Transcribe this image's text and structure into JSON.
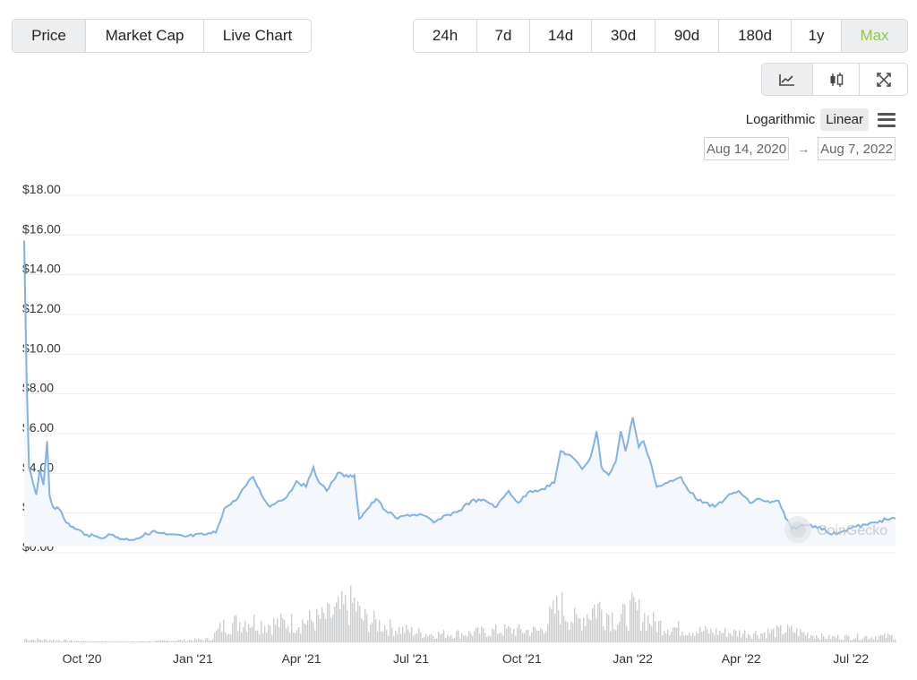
{
  "data_tabs": [
    {
      "label": "Price",
      "active": true
    },
    {
      "label": "Market Cap",
      "active": false
    },
    {
      "label": "Live Chart",
      "active": false
    }
  ],
  "range_tabs": [
    {
      "label": "24h",
      "active": false
    },
    {
      "label": "7d",
      "active": false
    },
    {
      "label": "14d",
      "active": false
    },
    {
      "label": "30d",
      "active": false
    },
    {
      "label": "90d",
      "active": false
    },
    {
      "label": "180d",
      "active": false
    },
    {
      "label": "1y",
      "active": false
    },
    {
      "label": "Max",
      "active": true
    }
  ],
  "chart_type_buttons": [
    {
      "icon": "line-chart-icon",
      "active": true
    },
    {
      "icon": "candlestick-icon",
      "active": false
    },
    {
      "icon": "fullscreen-icon",
      "active": false
    }
  ],
  "scale": {
    "logarithmic_label": "Logarithmic",
    "linear_label": "Linear",
    "selected": "Linear"
  },
  "date_range": {
    "from": "Aug 14, 2020",
    "to": "Aug 7, 2022"
  },
  "watermark": "CoinGecko",
  "colors": {
    "line": "#7fb2e8",
    "fill": "#f4f8fd",
    "volume": "#c9cdd2",
    "grid": "#eeeeee",
    "accent": "#8dc647"
  },
  "chart_data": {
    "type": "line",
    "x_start": "2020-08-14",
    "x_end": "2022-08-07",
    "ylim": [
      0,
      18
    ],
    "y_ticks": [
      0,
      2,
      4,
      6,
      8,
      10,
      12,
      14,
      16,
      18
    ],
    "y_tick_labels": [
      "$0.00",
      "$2.00",
      "$4.00",
      "$6.00",
      "$8.00",
      "$10.00",
      "$12.00",
      "$14.00",
      "$16.00",
      "$18.00"
    ],
    "x_ticks": [
      {
        "date": "2020-10-01",
        "label": "Oct '20"
      },
      {
        "date": "2021-01-01",
        "label": "Jan '21"
      },
      {
        "date": "2021-04-01",
        "label": "Apr '21"
      },
      {
        "date": "2021-07-01",
        "label": "Jul '21"
      },
      {
        "date": "2021-10-01",
        "label": "Oct '21"
      },
      {
        "date": "2022-01-01",
        "label": "Jan '22"
      },
      {
        "date": "2022-04-01",
        "label": "Apr '22"
      },
      {
        "date": "2022-07-01",
        "label": "Jul '22"
      }
    ],
    "grid": true,
    "series": [
      {
        "price": [
          [
            "2020-08-14",
            15.4
          ],
          [
            "2020-08-16",
            8.5
          ],
          [
            "2020-08-18",
            4.0
          ],
          [
            "2020-08-21",
            3.3
          ],
          [
            "2020-08-24",
            2.6
          ],
          [
            "2020-08-27",
            3.9
          ],
          [
            "2020-08-30",
            3.1
          ],
          [
            "2020-09-02",
            5.3
          ],
          [
            "2020-09-04",
            2.6
          ],
          [
            "2020-09-07",
            2.0
          ],
          [
            "2020-09-12",
            1.9
          ],
          [
            "2020-09-18",
            1.2
          ],
          [
            "2020-09-25",
            0.9
          ],
          [
            "2020-10-05",
            0.6
          ],
          [
            "2020-10-15",
            0.45
          ],
          [
            "2020-10-25",
            0.6
          ],
          [
            "2020-11-05",
            0.35
          ],
          [
            "2020-11-15",
            0.4
          ],
          [
            "2020-11-28",
            0.75
          ],
          [
            "2020-12-10",
            0.6
          ],
          [
            "2020-12-25",
            0.5
          ],
          [
            "2021-01-10",
            0.6
          ],
          [
            "2021-01-20",
            0.7
          ],
          [
            "2021-01-27",
            1.9
          ],
          [
            "2021-02-05",
            2.3
          ],
          [
            "2021-02-13",
            3.0
          ],
          [
            "2021-02-20",
            3.5
          ],
          [
            "2021-02-27",
            2.6
          ],
          [
            "2021-03-06",
            2.0
          ],
          [
            "2021-03-13",
            2.3
          ],
          [
            "2021-03-20",
            2.5
          ],
          [
            "2021-03-28",
            3.3
          ],
          [
            "2021-04-05",
            3.0
          ],
          [
            "2021-04-11",
            4.0
          ],
          [
            "2021-04-16",
            3.2
          ],
          [
            "2021-04-22",
            2.8
          ],
          [
            "2021-05-01",
            3.7
          ],
          [
            "2021-05-10",
            3.5
          ],
          [
            "2021-05-15",
            3.6
          ],
          [
            "2021-05-19",
            1.4
          ],
          [
            "2021-05-26",
            1.9
          ],
          [
            "2021-06-02",
            2.4
          ],
          [
            "2021-06-10",
            1.8
          ],
          [
            "2021-06-20",
            1.4
          ],
          [
            "2021-06-28",
            1.6
          ],
          [
            "2021-07-10",
            1.6
          ],
          [
            "2021-07-20",
            1.2
          ],
          [
            "2021-08-01",
            1.6
          ],
          [
            "2021-08-10",
            1.8
          ],
          [
            "2021-08-20",
            2.3
          ],
          [
            "2021-09-01",
            2.3
          ],
          [
            "2021-09-10",
            2.0
          ],
          [
            "2021-09-20",
            2.8
          ],
          [
            "2021-09-28",
            2.2
          ],
          [
            "2021-10-08",
            2.8
          ],
          [
            "2021-10-18",
            2.9
          ],
          [
            "2021-10-28",
            3.2
          ],
          [
            "2021-11-02",
            4.8
          ],
          [
            "2021-11-10",
            4.6
          ],
          [
            "2021-11-20",
            3.9
          ],
          [
            "2021-11-27",
            4.5
          ],
          [
            "2021-12-02",
            5.8
          ],
          [
            "2021-12-06",
            4.0
          ],
          [
            "2021-12-12",
            3.6
          ],
          [
            "2021-12-18",
            4.3
          ],
          [
            "2021-12-22",
            5.8
          ],
          [
            "2021-12-26",
            4.8
          ],
          [
            "2022-01-01",
            6.5
          ],
          [
            "2022-01-06",
            5.0
          ],
          [
            "2022-01-10",
            5.3
          ],
          [
            "2022-01-15",
            4.4
          ],
          [
            "2022-01-21",
            3.0
          ],
          [
            "2022-01-26",
            3.1
          ],
          [
            "2022-02-03",
            3.3
          ],
          [
            "2022-02-10",
            3.5
          ],
          [
            "2022-02-18",
            2.7
          ],
          [
            "2022-02-28",
            2.2
          ],
          [
            "2022-03-10",
            2.0
          ],
          [
            "2022-03-20",
            2.5
          ],
          [
            "2022-03-30",
            2.8
          ],
          [
            "2022-04-08",
            2.2
          ],
          [
            "2022-04-16",
            2.4
          ],
          [
            "2022-04-25",
            2.2
          ],
          [
            "2022-05-02",
            2.3
          ],
          [
            "2022-05-08",
            1.4
          ],
          [
            "2022-05-13",
            0.9
          ],
          [
            "2022-05-25",
            1.1
          ],
          [
            "2022-06-05",
            1.0
          ],
          [
            "2022-06-15",
            0.6
          ],
          [
            "2022-06-25",
            0.8
          ],
          [
            "2022-07-05",
            1.0
          ],
          [
            "2022-07-15",
            1.1
          ],
          [
            "2022-07-25",
            1.3
          ],
          [
            "2022-08-07",
            1.4
          ]
        ],
        "volume_pct": [
          [
            "2020-08-14",
            8
          ],
          [
            "2020-09-01",
            6
          ],
          [
            "2020-10-01",
            3
          ],
          [
            "2020-11-01",
            2
          ],
          [
            "2020-12-01",
            3
          ],
          [
            "2021-01-15",
            8
          ],
          [
            "2021-01-25",
            40
          ],
          [
            "2021-02-15",
            55
          ],
          [
            "2021-03-01",
            45
          ],
          [
            "2021-04-01",
            50
          ],
          [
            "2021-04-20",
            60
          ],
          [
            "2021-05-15",
            95
          ],
          [
            "2021-05-20",
            60
          ],
          [
            "2021-06-15",
            35
          ],
          [
            "2021-07-15",
            20
          ],
          [
            "2021-08-15",
            22
          ],
          [
            "2021-09-15",
            30
          ],
          [
            "2021-10-15",
            28
          ],
          [
            "2021-11-01",
            90
          ],
          [
            "2021-11-15",
            50
          ],
          [
            "2021-12-01",
            90
          ],
          [
            "2021-12-20",
            55
          ],
          [
            "2022-01-01",
            80
          ],
          [
            "2022-01-20",
            45
          ],
          [
            "2022-02-15",
            30
          ],
          [
            "2022-03-15",
            25
          ],
          [
            "2022-04-15",
            22
          ],
          [
            "2022-05-10",
            30
          ],
          [
            "2022-06-10",
            12
          ],
          [
            "2022-07-10",
            14
          ],
          [
            "2022-08-07",
            15
          ]
        ]
      }
    ]
  }
}
